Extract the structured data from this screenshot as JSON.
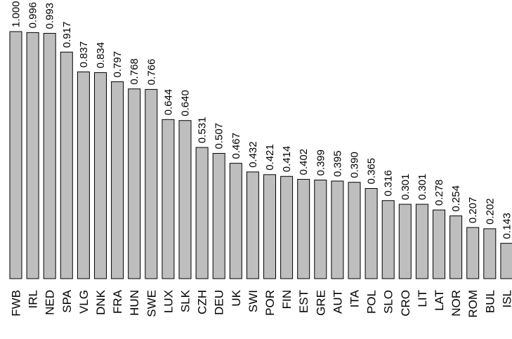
{
  "chart_data": {
    "type": "bar",
    "title": "",
    "xlabel": "",
    "ylabel": "",
    "ylim": [
      0,
      1
    ],
    "grid": false,
    "legend": "none",
    "bar_color": "#bebebe",
    "categories": [
      "FWB",
      "IRL",
      "NED",
      "SPA",
      "VLG",
      "DNK",
      "FRA",
      "HUN",
      "SWE",
      "LUX",
      "SLK",
      "CZH",
      "DEU",
      "UK",
      "SWI",
      "POR",
      "FIN",
      "EST",
      "GRE",
      "AUT",
      "ITA",
      "POL",
      "SLO",
      "CRO",
      "LIT",
      "LAT",
      "NOR",
      "ROM",
      "BUL",
      "ISL"
    ],
    "values": [
      1.0,
      0.996,
      0.993,
      0.917,
      0.837,
      0.834,
      0.797,
      0.768,
      0.766,
      0.644,
      0.64,
      0.531,
      0.507,
      0.467,
      0.432,
      0.421,
      0.414,
      0.402,
      0.399,
      0.395,
      0.39,
      0.365,
      0.316,
      0.301,
      0.301,
      0.278,
      0.254,
      0.207,
      0.202,
      0.143
    ],
    "value_labels": [
      "1.000",
      "0.996",
      "0.993",
      "0.917",
      "0.837",
      "0.834",
      "0.797",
      "0.768",
      "0.766",
      "0.644",
      "0.640",
      "0.531",
      "0.507",
      "0.467",
      "0.432",
      "0.421",
      "0.414",
      "0.402",
      "0.399",
      "0.395",
      "0.390",
      "0.365",
      "0.316",
      "0.301",
      "0.301",
      "0.278",
      "0.254",
      "0.207",
      "0.202",
      "0.143"
    ]
  }
}
